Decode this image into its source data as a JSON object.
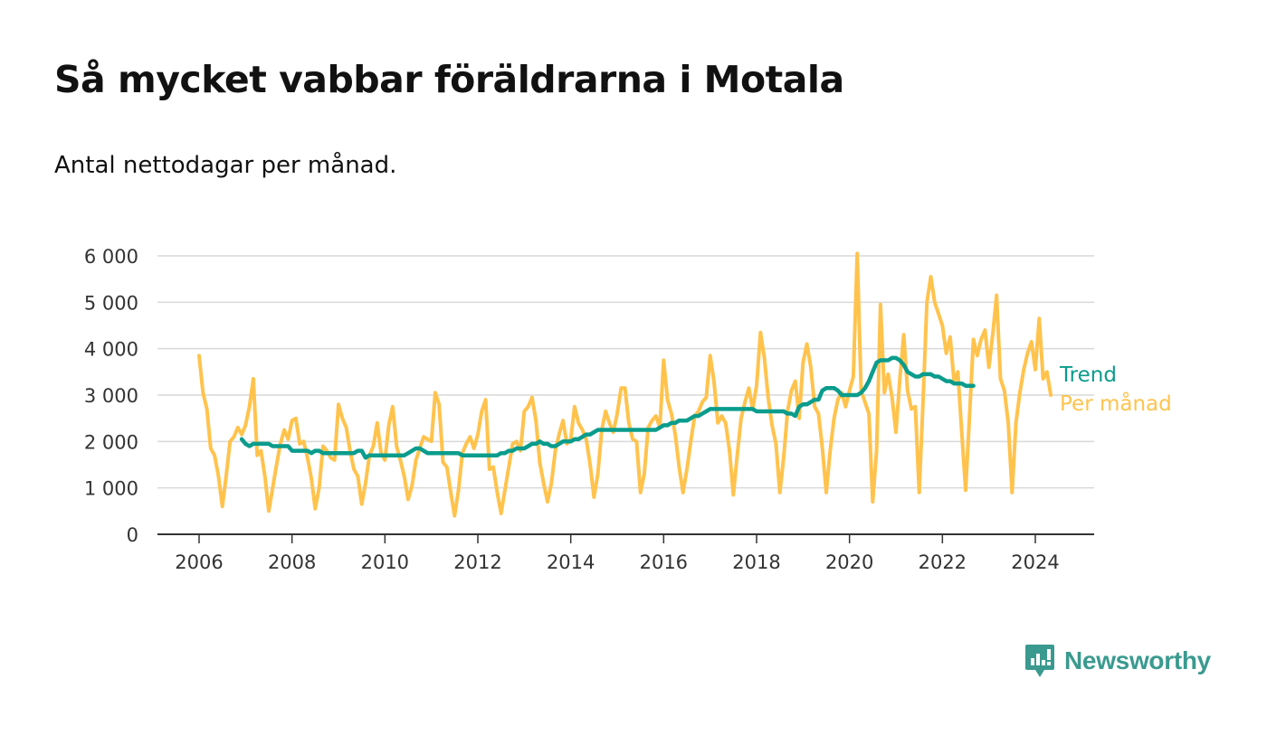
{
  "title": "Så mycket vabbar föräldrarna i Motala",
  "subtitle": "Antal nettodagar per månad.",
  "brand": {
    "name": "Newsworthy",
    "color": "#3a9a8f",
    "icon": "newsworthy-logo-icon"
  },
  "colors": {
    "monthly": "#ffc34d",
    "trend": "#0a9c8c",
    "grid": "#d9d9d9",
    "axis": "#333333",
    "text": "#333333"
  },
  "chart_data": {
    "type": "line",
    "title": "Så mycket vabbar föräldrarna i Motala",
    "subtitle": "Antal nettodagar per månad.",
    "xlabel": "",
    "ylabel": "",
    "xlim": [
      2005.5,
      2025.3
    ],
    "ylim": [
      0,
      6000
    ],
    "yticks": [
      0,
      1000,
      2000,
      3000,
      4000,
      5000,
      6000
    ],
    "ytick_labels": [
      "0",
      "1 000",
      "2 000",
      "3 000",
      "4 000",
      "5 000",
      "6 000"
    ],
    "xticks": [
      2006,
      2008,
      2010,
      2012,
      2014,
      2016,
      2018,
      2020,
      2022,
      2024
    ],
    "xtick_labels": [
      "2006",
      "2008",
      "2010",
      "2012",
      "2014",
      "2016",
      "2018",
      "2020",
      "2022",
      "2024"
    ],
    "grid": true,
    "legend": "inline labels at line ends (right)",
    "series": [
      {
        "name": "Per månad",
        "color": "#ffc34d",
        "x_start": "2006-01",
        "values": [
          3850,
          3050,
          2700,
          1850,
          1700,
          1250,
          600,
          1250,
          2000,
          2100,
          2300,
          2150,
          2350,
          2750,
          3350,
          1700,
          1800,
          1250,
          500,
          1000,
          1500,
          1950,
          2250,
          2050,
          2450,
          2500,
          1950,
          2000,
          1650,
          1200,
          550,
          1000,
          1900,
          1800,
          1650,
          1600,
          2800,
          2500,
          2300,
          1800,
          1400,
          1250,
          650,
          1100,
          1700,
          1900,
          2400,
          1750,
          1600,
          2350,
          2750,
          1900,
          1600,
          1250,
          750,
          1050,
          1600,
          1850,
          2100,
          2050,
          2000,
          3050,
          2800,
          1550,
          1450,
          900,
          400,
          950,
          1750,
          1950,
          2100,
          1850,
          2150,
          2650,
          2900,
          1400,
          1450,
          900,
          450,
          950,
          1450,
          1950,
          2000,
          1800,
          2650,
          2750,
          2950,
          2450,
          1550,
          1100,
          700,
          1100,
          1800,
          2150,
          2450,
          1950,
          2050,
          2750,
          2400,
          2250,
          2050,
          1500,
          800,
          1300,
          2250,
          2650,
          2400,
          2200,
          2600,
          3150,
          3150,
          2400,
          2050,
          2000,
          900,
          1300,
          2300,
          2450,
          2550,
          2300,
          3750,
          2900,
          2600,
          2150,
          1450,
          900,
          1400,
          2000,
          2550,
          2650,
          2850,
          2950,
          3850,
          3300,
          2400,
          2550,
          2400,
          1800,
          850,
          1700,
          2500,
          2850,
          3150,
          2700,
          3200,
          4350,
          3800,
          2950,
          2350,
          1950,
          900,
          1650,
          2650,
          3100,
          3300,
          2500,
          3700,
          4100,
          3600,
          2750,
          2600,
          1850,
          900,
          1800,
          2500,
          2900,
          3050,
          2750,
          3100,
          3400,
          6050,
          3100,
          2850,
          2600,
          700,
          1800,
          4950,
          3050,
          3450,
          2950,
          2200,
          3350,
          4300,
          3100,
          2700,
          2750,
          900,
          2850,
          5000,
          5550,
          5000,
          4750,
          4500,
          3900,
          4250,
          3300,
          3500,
          2200,
          950,
          2550,
          4200,
          3850,
          4200,
          4400,
          3600,
          4300,
          5150,
          3350,
          3100,
          2400,
          900,
          2400,
          3050,
          3550,
          3900,
          4150,
          3550,
          4650,
          3350,
          3500,
          3000
        ]
      },
      {
        "name": "Trend",
        "color": "#0a9c8c",
        "x_start": "2006-12",
        "values": [
          2050,
          1950,
          1900,
          1950,
          1950,
          1950,
          1950,
          1950,
          1900,
          1900,
          1900,
          1900,
          1900,
          1800,
          1800,
          1800,
          1800,
          1800,
          1750,
          1800,
          1800,
          1750,
          1750,
          1750,
          1750,
          1750,
          1750,
          1750,
          1750,
          1750,
          1800,
          1800,
          1650,
          1700,
          1700,
          1700,
          1700,
          1700,
          1700,
          1700,
          1700,
          1700,
          1700,
          1750,
          1800,
          1850,
          1850,
          1800,
          1750,
          1750,
          1750,
          1750,
          1750,
          1750,
          1750,
          1750,
          1750,
          1700,
          1700,
          1700,
          1700,
          1700,
          1700,
          1700,
          1700,
          1700,
          1700,
          1750,
          1750,
          1800,
          1800,
          1850,
          1850,
          1850,
          1900,
          1950,
          1950,
          2000,
          1950,
          1950,
          1900,
          1900,
          1950,
          2000,
          2000,
          2000,
          2050,
          2050,
          2100,
          2150,
          2150,
          2200,
          2250,
          2250,
          2250,
          2250,
          2250,
          2250,
          2250,
          2250,
          2250,
          2250,
          2250,
          2250,
          2250,
          2250,
          2250,
          2250,
          2300,
          2350,
          2350,
          2400,
          2400,
          2450,
          2450,
          2450,
          2500,
          2550,
          2550,
          2600,
          2650,
          2700,
          2700,
          2700,
          2700,
          2700,
          2700,
          2700,
          2700,
          2700,
          2700,
          2700,
          2700,
          2650,
          2650,
          2650,
          2650,
          2650,
          2650,
          2650,
          2650,
          2600,
          2600,
          2550,
          2750,
          2800,
          2800,
          2850,
          2900,
          2900,
          3100,
          3150,
          3150,
          3150,
          3100,
          3000,
          3000,
          3000,
          3000,
          3000,
          3050,
          3150,
          3300,
          3500,
          3700,
          3750,
          3750,
          3750,
          3800,
          3800,
          3750,
          3650,
          3500,
          3450,
          3400,
          3400,
          3450,
          3450,
          3450,
          3400,
          3400,
          3350,
          3300,
          3300,
          3250,
          3250,
          3250,
          3200,
          3200,
          3200
        ]
      }
    ]
  }
}
